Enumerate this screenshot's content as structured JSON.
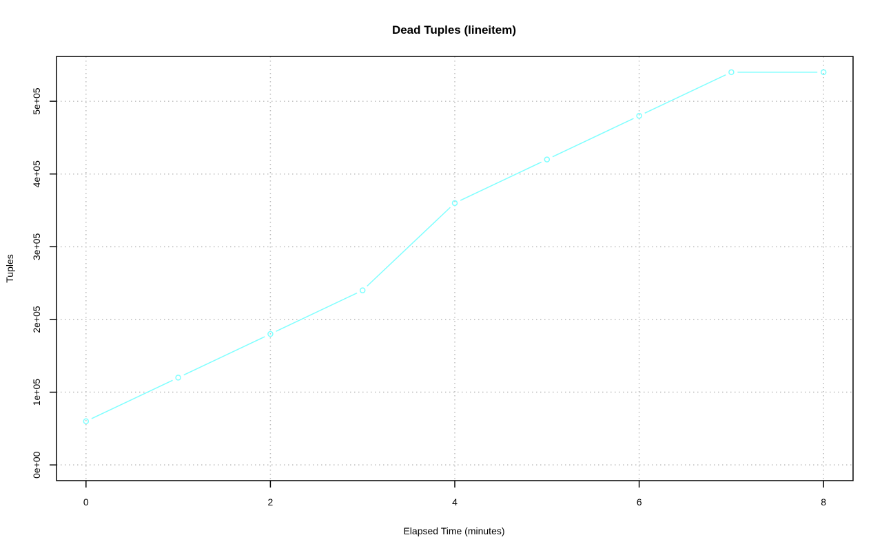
{
  "chart_data": {
    "type": "line",
    "title": "Dead Tuples (lineitem)",
    "xlabel": "Elapsed Time (minutes)",
    "ylabel": "Tuples",
    "x": [
      0,
      1,
      2,
      3,
      4,
      5,
      6,
      7,
      8
    ],
    "series": [
      {
        "values": [
          60000,
          120000,
          180000,
          240000,
          360000,
          420000,
          480000,
          540000,
          540000
        ],
        "color": "#80FFFF"
      }
    ],
    "xlim": [
      0,
      8
    ],
    "ylim": [
      0,
      540000
    ],
    "xticks": [
      0,
      2,
      4,
      6,
      8
    ],
    "xtick_labels": [
      "0",
      "2",
      "4",
      "6",
      "8"
    ],
    "yticks": [
      0,
      100000,
      200000,
      300000,
      400000,
      500000
    ],
    "ytick_labels": [
      "0e+00",
      "1e+05",
      "2e+05",
      "3e+05",
      "4e+05",
      "5e+05"
    ],
    "grid": true,
    "markers": "open-circle"
  }
}
